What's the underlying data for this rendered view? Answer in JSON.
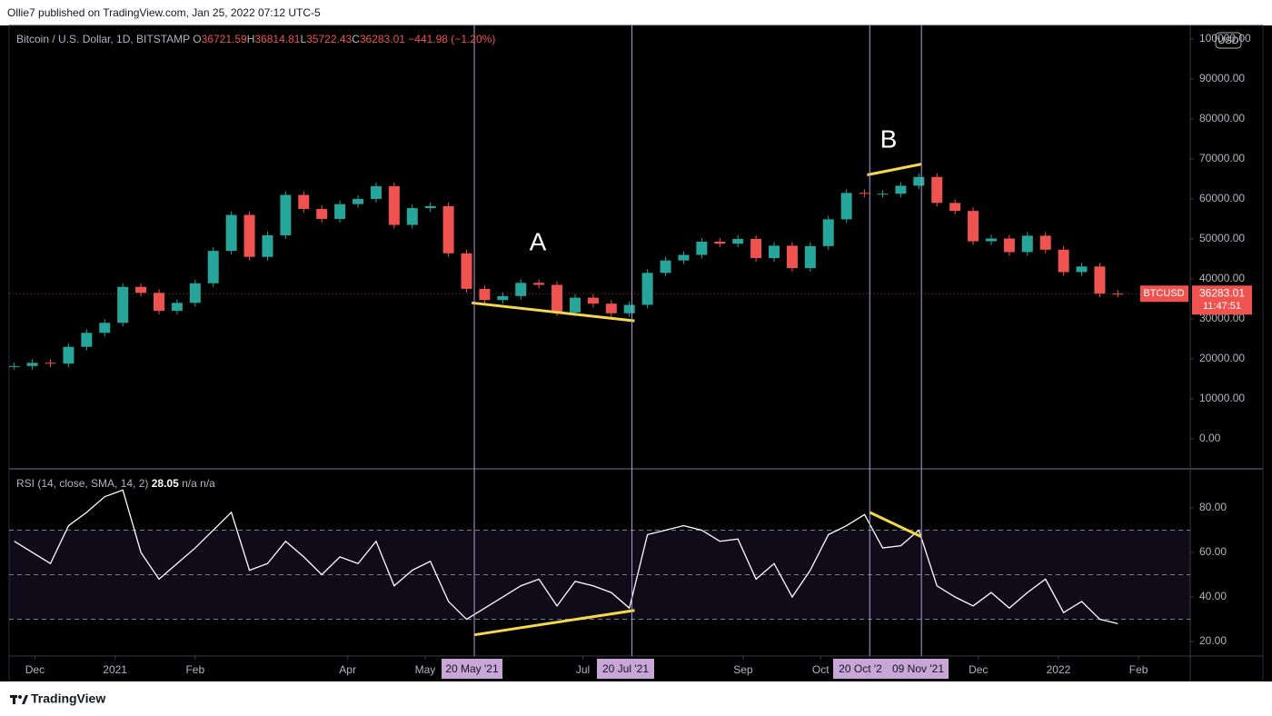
{
  "header": {
    "publisher": "Ollie7 published on TradingView.com, Jan 25, 2022 07:12 UTC-5"
  },
  "footer": {
    "brand": "TradingView"
  },
  "currency": "USD",
  "markers": [
    {
      "date": "2021-05-20",
      "label": "20 May '21"
    },
    {
      "date": "2021-07-20",
      "label": "20 Jul '21"
    },
    {
      "date": "2021-10-20",
      "label": "20 Oct '2"
    },
    {
      "date": "2021-11-09",
      "label": "09 Nov '21"
    }
  ],
  "annotations": [
    {
      "text": "A"
    },
    {
      "text": "B"
    }
  ],
  "chart_data": [
    {
      "type": "candlestick",
      "title": "Bitcoin / U.S. Dollar, 1D, BITSTAMP",
      "ohlc": [
        {
          "label": "O",
          "value": 36721.59
        },
        {
          "label": "H",
          "value": 36814.81
        },
        {
          "label": "L",
          "value": 35722.43
        },
        {
          "label": "C",
          "value": 36283.01
        }
      ],
      "change": "−441.98 (−1.20%)",
      "symbol": "BTCUSD",
      "last": {
        "value": 36283.01,
        "countdown": "11:47:51"
      },
      "up_color": "#26a69a",
      "down_color": "#ef5350",
      "x": [
        "2020-11-23",
        "2020-11-30",
        "2020-12-07",
        "2020-12-14",
        "2020-12-21",
        "2020-12-28",
        "2021-01-04",
        "2021-01-11",
        "2021-01-18",
        "2021-01-25",
        "2021-02-01",
        "2021-02-08",
        "2021-02-15",
        "2021-02-22",
        "2021-03-01",
        "2021-03-08",
        "2021-03-15",
        "2021-03-22",
        "2021-03-29",
        "2021-04-05",
        "2021-04-12",
        "2021-04-19",
        "2021-04-26",
        "2021-05-03",
        "2021-05-10",
        "2021-05-17",
        "2021-05-24",
        "2021-05-31",
        "2021-06-07",
        "2021-06-14",
        "2021-06-21",
        "2021-06-28",
        "2021-07-05",
        "2021-07-12",
        "2021-07-19",
        "2021-07-26",
        "2021-08-02",
        "2021-08-09",
        "2021-08-16",
        "2021-08-23",
        "2021-08-30",
        "2021-09-06",
        "2021-09-13",
        "2021-09-20",
        "2021-09-27",
        "2021-10-04",
        "2021-10-11",
        "2021-10-18",
        "2021-10-25",
        "2021-11-01",
        "2021-11-08",
        "2021-11-15",
        "2021-11-22",
        "2021-11-29",
        "2021-12-06",
        "2021-12-13",
        "2021-12-20",
        "2021-12-27",
        "2022-01-03",
        "2022-01-10",
        "2022-01-17",
        "2022-01-24"
      ],
      "values": [
        18200,
        19000,
        18800,
        23000,
        26500,
        29000,
        38000,
        36500,
        32000,
        34000,
        38900,
        47000,
        56000,
        45500,
        50900,
        61000,
        57500,
        55000,
        58700,
        60000,
        63200,
        53500,
        57700,
        58200,
        46400,
        37500,
        34700,
        35700,
        39000,
        38500,
        31600,
        35300,
        33800,
        31400,
        33500,
        41500,
        44600,
        46000,
        49300,
        48800,
        50000,
        45200,
        48300,
        42700,
        48200,
        54900,
        61500,
        61300,
        61300,
        63300,
        65500,
        59000,
        57000,
        49400,
        50100,
        46700,
        50800,
        47300,
        41700,
        43100,
        36300,
        36283.01
      ],
      "xlim": [
        "2020-11-21",
        "2022-02-21"
      ],
      "xticks": [
        {
          "value": "2020-12-01",
          "label": "Dec"
        },
        {
          "value": "2021-01-01",
          "label": "2021"
        },
        {
          "value": "2021-02-01",
          "label": "Feb"
        },
        {
          "value": "2021-04-01",
          "label": "Apr"
        },
        {
          "value": "2021-05-01",
          "label": "May"
        },
        {
          "value": "2021-07-01",
          "label": "Jul"
        },
        {
          "value": "2021-09-01",
          "label": "Sep"
        },
        {
          "value": "2021-10-01",
          "label": "Oct"
        },
        {
          "value": "2021-12-01",
          "label": "Dec"
        },
        {
          "value": "2022-01-01",
          "label": "2022"
        },
        {
          "value": "2022-02-01",
          "label": "Feb"
        }
      ],
      "ylim": [
        -7300,
        103400
      ],
      "yticks": [
        {
          "value": 0,
          "label": "0.00"
        },
        {
          "value": 10000,
          "label": "10000.00"
        },
        {
          "value": 20000,
          "label": "20000.00"
        },
        {
          "value": 30000,
          "label": "30000.00"
        },
        {
          "value": 40000,
          "label": "40000.00"
        },
        {
          "value": 50000,
          "label": "50000.00"
        },
        {
          "value": 60000,
          "label": "60000.00"
        },
        {
          "value": 70000,
          "label": "70000.00"
        },
        {
          "value": 80000,
          "label": "80000.00"
        },
        {
          "value": 90000,
          "label": "90000.00"
        },
        {
          "value": 100000,
          "label": "100000.00"
        }
      ],
      "trendlines": [
        {
          "x": [
            "2021-05-19",
            "2021-07-21"
          ],
          "y": [
            34000,
            29500
          ]
        },
        {
          "x": [
            "2021-10-19",
            "2021-11-09"
          ],
          "y": [
            66000,
            68700
          ]
        }
      ],
      "trend_color": "#f5d949"
    },
    {
      "type": "line",
      "title": "RSI (14, close, SMA, 14, 2)",
      "last": "28.05",
      "extra": [
        "n/a",
        "n/a"
      ],
      "color": "#ffffff",
      "x": [
        "2020-11-23",
        "2020-11-30",
        "2020-12-07",
        "2020-12-14",
        "2020-12-21",
        "2020-12-28",
        "2021-01-04",
        "2021-01-11",
        "2021-01-18",
        "2021-01-25",
        "2021-02-01",
        "2021-02-08",
        "2021-02-15",
        "2021-02-22",
        "2021-03-01",
        "2021-03-08",
        "2021-03-15",
        "2021-03-22",
        "2021-03-29",
        "2021-04-05",
        "2021-04-12",
        "2021-04-19",
        "2021-04-26",
        "2021-05-03",
        "2021-05-10",
        "2021-05-17",
        "2021-05-24",
        "2021-05-31",
        "2021-06-07",
        "2021-06-14",
        "2021-06-21",
        "2021-06-28",
        "2021-07-05",
        "2021-07-12",
        "2021-07-19",
        "2021-07-26",
        "2021-08-02",
        "2021-08-09",
        "2021-08-16",
        "2021-08-23",
        "2021-08-30",
        "2021-09-06",
        "2021-09-13",
        "2021-09-20",
        "2021-09-27",
        "2021-10-04",
        "2021-10-11",
        "2021-10-18",
        "2021-10-25",
        "2021-11-01",
        "2021-11-08",
        "2021-11-15",
        "2021-11-22",
        "2021-11-29",
        "2021-12-06",
        "2021-12-13",
        "2021-12-20",
        "2021-12-27",
        "2022-01-03",
        "2022-01-10",
        "2022-01-17",
        "2022-01-24"
      ],
      "values": [
        65,
        60,
        55,
        72,
        78,
        85,
        88,
        60,
        48,
        55,
        62,
        70,
        78,
        52,
        55,
        65,
        58,
        50,
        58,
        55,
        65,
        45,
        52,
        56,
        38,
        30,
        35,
        40,
        45,
        48,
        36,
        47,
        45,
        42,
        35,
        68,
        70,
        72,
        70,
        65,
        66,
        48,
        55,
        40,
        52,
        68,
        72,
        77,
        62,
        63,
        70,
        45,
        40,
        36,
        42,
        35,
        42,
        48,
        33,
        38,
        30,
        28.05
      ],
      "xlim": [
        "2020-11-21",
        "2022-02-21"
      ],
      "ylim": [
        13.5,
        97.1
      ],
      "yticks": [
        {
          "value": 20,
          "label": "20.00"
        },
        {
          "value": 40,
          "label": "40.00"
        },
        {
          "value": 60,
          "label": "60.00"
        },
        {
          "value": 80,
          "label": "80.00"
        }
      ],
      "levels": [
        30,
        50,
        70
      ],
      "trendlines": [
        {
          "x": [
            "2021-05-20",
            "2021-07-21"
          ],
          "y": [
            23,
            34
          ]
        },
        {
          "x": [
            "2021-10-20",
            "2021-11-09"
          ],
          "y": [
            78,
            67
          ]
        }
      ],
      "trend_color": "#f5d949"
    }
  ]
}
